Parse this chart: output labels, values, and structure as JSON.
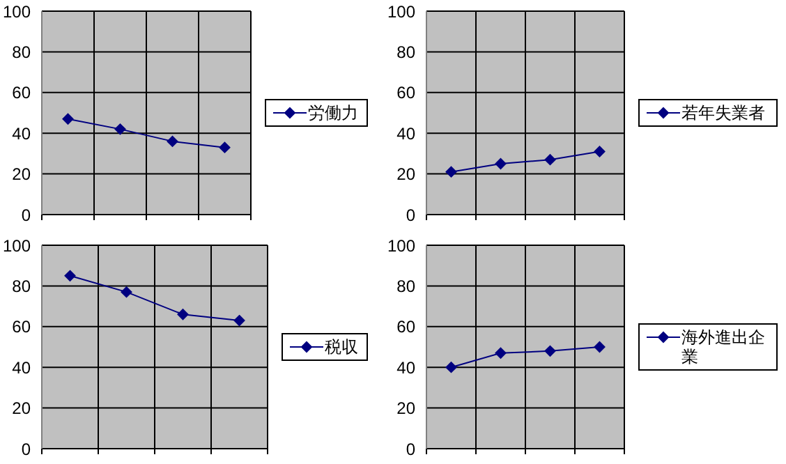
{
  "chart_data": [
    {
      "type": "line",
      "categories": [
        null,
        null,
        null,
        null
      ],
      "series": [
        {
          "name": "労働力",
          "color": "#000080",
          "values": [
            47,
            42,
            36,
            33
          ]
        }
      ],
      "ylim": [
        0,
        100
      ],
      "yticks": [
        0,
        20,
        40,
        60,
        80,
        100
      ],
      "grid": true,
      "legend": "right",
      "marker": "diamond"
    },
    {
      "type": "line",
      "categories": [
        null,
        null,
        null,
        null
      ],
      "series": [
        {
          "name": "若年失業者",
          "color": "#000080",
          "values": [
            21,
            25,
            27,
            31
          ]
        }
      ],
      "ylim": [
        0,
        100
      ],
      "yticks": [
        0,
        20,
        40,
        60,
        80,
        100
      ],
      "grid": true,
      "legend": "right",
      "marker": "diamond"
    },
    {
      "type": "line",
      "categories": [
        null,
        null,
        null,
        null
      ],
      "series": [
        {
          "name": "税収",
          "color": "#000080",
          "values": [
            85,
            77,
            66,
            63
          ]
        }
      ],
      "ylim": [
        0,
        100
      ],
      "yticks": [
        0,
        20,
        40,
        60,
        80,
        100
      ],
      "grid": true,
      "legend": "right",
      "marker": "diamond"
    },
    {
      "type": "line",
      "categories": [
        null,
        null,
        null,
        null
      ],
      "series": [
        {
          "name": "海外進出企業",
          "color": "#000080",
          "values": [
            40,
            47,
            48,
            50
          ]
        }
      ],
      "ylim": [
        0,
        100
      ],
      "yticks": [
        0,
        20,
        40,
        60,
        80,
        100
      ],
      "grid": true,
      "legend": "right",
      "marker": "diamond"
    }
  ]
}
